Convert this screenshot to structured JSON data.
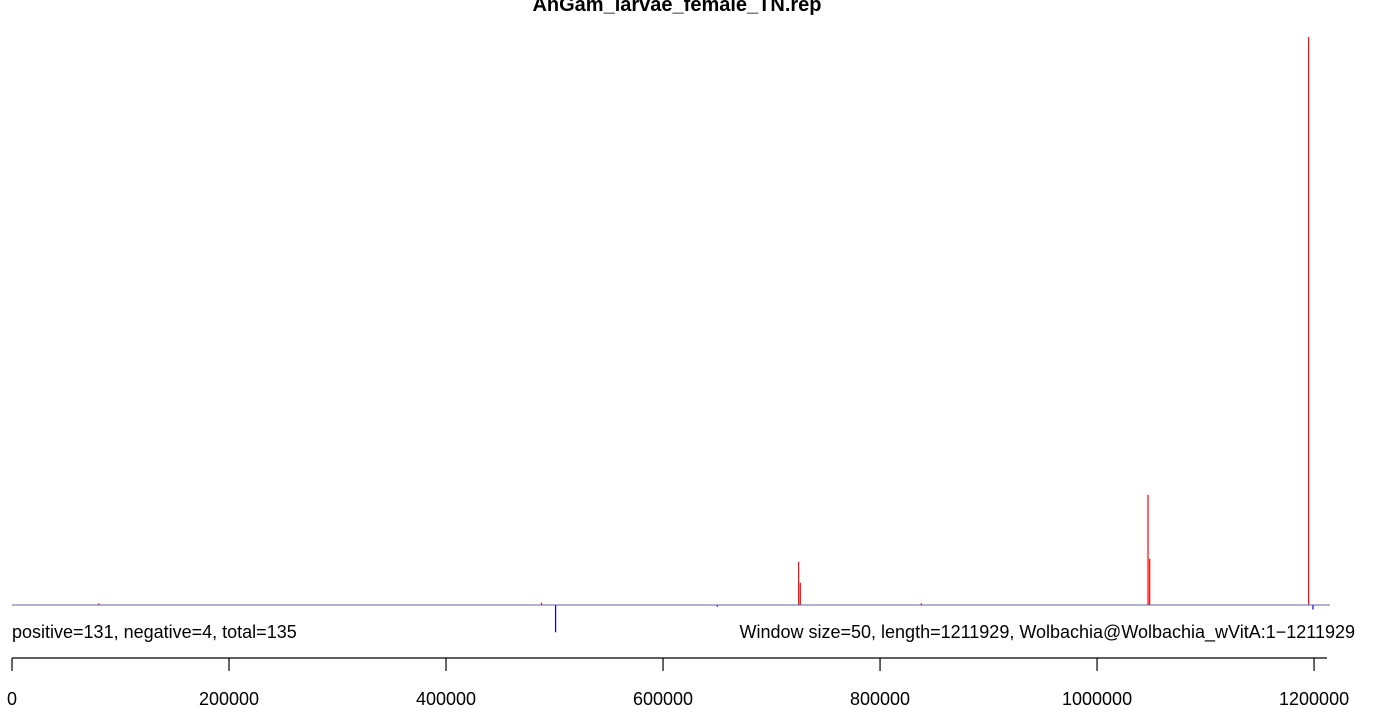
{
  "chart_data": {
    "type": "bar",
    "title": "AnGam_larvae_female_TN.rep",
    "stats_label": "positive=131, negative=4, total=135",
    "info_label": "Window size=50, length=1211929, Wolbachia@Wolbachia_wVitA:1−1211929",
    "xlim": [
      0,
      1211929
    ],
    "x_ticks": [
      0,
      200000,
      400000,
      600000,
      800000,
      1000000,
      1200000
    ],
    "x_tick_labels": [
      "0",
      "200000",
      "400000",
      "600000",
      "800000",
      "1000000",
      "1200000"
    ],
    "ylim": [
      -5,
      100
    ],
    "series": [
      {
        "strand": "positive",
        "color": "#ff0000",
        "x": [
          80000,
          488000,
          725000,
          726500,
          838000,
          1047000,
          1048500,
          1195000
        ],
        "values": [
          0.3,
          0.4,
          7.6,
          3.9,
          0.3,
          19.4,
          8.1,
          100
        ]
      },
      {
        "strand": "negative",
        "color": "#0000ff",
        "x": [
          501000,
          650000,
          1199000
        ],
        "values": [
          -4.8,
          -0.3,
          -0.8
        ]
      }
    ]
  }
}
